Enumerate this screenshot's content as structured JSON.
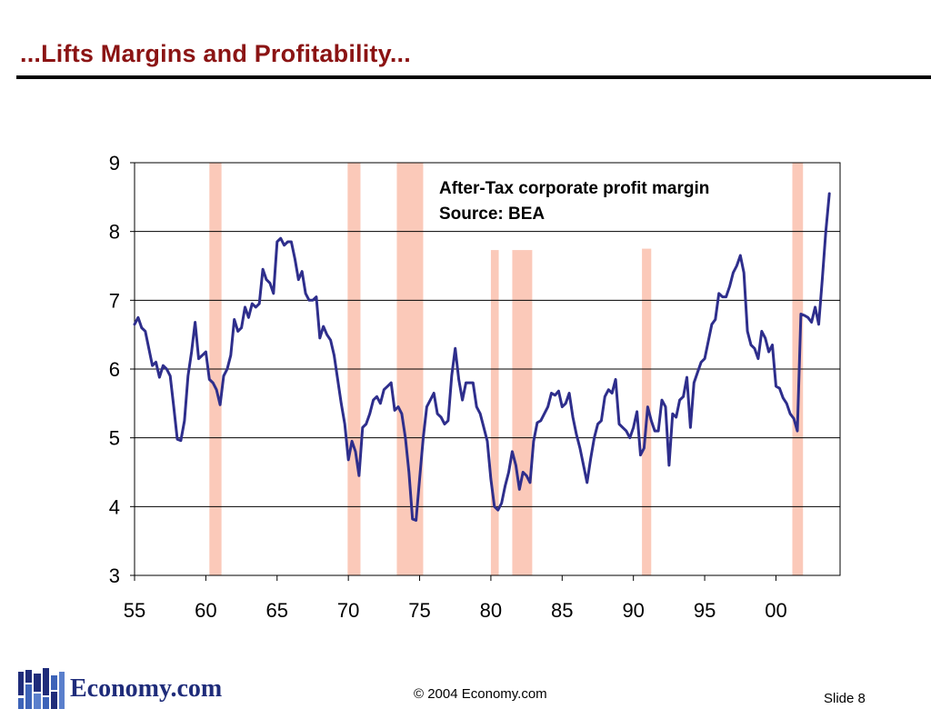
{
  "slide": {
    "title": "...Lifts Margins and Profitability...",
    "logo_text": "Economy.com",
    "copyright": "© 2004 Economy.com",
    "slide_label": "Slide 8"
  },
  "colors": {
    "title": "#8B1414",
    "line": "#2E2E8C",
    "recession": "#FBC9B9",
    "logo": "#1f2c7a"
  },
  "chart_data": {
    "type": "line",
    "annotation_lines": [
      "After-Tax corporate profit margin",
      "Source: BEA"
    ],
    "ylim": [
      3,
      9
    ],
    "yticks": [
      3,
      4,
      5,
      6,
      7,
      8,
      9
    ],
    "xlim": [
      1955,
      2004.5
    ],
    "xticks": [
      1955,
      1960,
      1965,
      1970,
      1975,
      1980,
      1985,
      1990,
      1995,
      2000
    ],
    "xtick_labels": [
      "55",
      "60",
      "65",
      "70",
      "75",
      "80",
      "85",
      "90",
      "95",
      "00"
    ],
    "grid": true,
    "recession_bands": [
      {
        "start": 1960.25,
        "end": 1961.1,
        "top": 9
      },
      {
        "start": 1969.95,
        "end": 1970.85,
        "top": 9
      },
      {
        "start": 1973.4,
        "end": 1975.25,
        "top": 9
      },
      {
        "start": 1980.0,
        "end": 1980.55,
        "top": 7.73
      },
      {
        "start": 1981.5,
        "end": 1982.9,
        "top": 7.73
      },
      {
        "start": 1990.6,
        "end": 1991.25,
        "top": 7.75
      },
      {
        "start": 2001.15,
        "end": 2001.9,
        "top": 9
      }
    ],
    "series": [
      {
        "x": [
          1955.0,
          1955.25,
          1955.5,
          1955.75,
          1956.0,
          1956.25,
          1956.5,
          1956.75,
          1957.0,
          1957.25,
          1957.5,
          1957.75,
          1958.0,
          1958.25,
          1958.5,
          1958.75,
          1959.0,
          1959.25,
          1959.5,
          1959.75,
          1960.0,
          1960.25,
          1960.5,
          1960.75,
          1961.0,
          1961.25,
          1961.5,
          1961.75,
          1962.0,
          1962.25,
          1962.5,
          1962.75,
          1963.0,
          1963.25,
          1963.5,
          1963.75,
          1964.0,
          1964.25,
          1964.5,
          1964.75,
          1965.0,
          1965.25,
          1965.5,
          1965.75,
          1966.0,
          1966.25,
          1966.5,
          1966.75,
          1967.0,
          1967.25,
          1967.5,
          1967.75,
          1968.0,
          1968.25,
          1968.5,
          1968.75,
          1969.0,
          1969.25,
          1969.5,
          1969.75,
          1970.0,
          1970.25,
          1970.5,
          1970.75,
          1971.0,
          1971.25,
          1971.5,
          1971.75,
          1972.0,
          1972.25,
          1972.5,
          1972.75,
          1973.0,
          1973.25,
          1973.5,
          1973.75,
          1974.0,
          1974.25,
          1974.5,
          1974.75,
          1975.0,
          1975.25,
          1975.5,
          1975.75,
          1976.0,
          1976.25,
          1976.5,
          1976.75,
          1977.0,
          1977.25,
          1977.5,
          1977.75,
          1978.0,
          1978.25,
          1978.5,
          1978.75,
          1979.0,
          1979.25,
          1979.5,
          1979.75,
          1980.0,
          1980.25,
          1980.5,
          1980.75,
          1981.0,
          1981.25,
          1981.5,
          1981.75,
          1982.0,
          1982.25,
          1982.5,
          1982.75,
          1983.0,
          1983.25,
          1983.5,
          1983.75,
          1984.0,
          1984.25,
          1984.5,
          1984.75,
          1985.0,
          1985.25,
          1985.5,
          1985.75,
          1986.0,
          1986.25,
          1986.5,
          1986.75,
          1987.0,
          1987.25,
          1987.5,
          1987.75,
          1988.0,
          1988.25,
          1988.5,
          1988.75,
          1989.0,
          1989.25,
          1989.5,
          1989.75,
          1990.0,
          1990.25,
          1990.5,
          1990.75,
          1991.0,
          1991.25,
          1991.5,
          1991.75,
          1992.0,
          1992.25,
          1992.5,
          1992.75,
          1993.0,
          1993.25,
          1993.5,
          1993.75,
          1994.0,
          1994.25,
          1994.5,
          1994.75,
          1995.0,
          1995.25,
          1995.5,
          1995.75,
          1996.0,
          1996.25,
          1996.5,
          1996.75,
          1997.0,
          1997.25,
          1997.5,
          1997.75,
          1998.0,
          1998.25,
          1998.5,
          1998.75,
          1999.0,
          1999.25,
          1999.5,
          1999.75,
          2000.0,
          2000.25,
          2000.5,
          2000.75,
          2001.0,
          2001.25,
          2001.5,
          2001.75,
          2002.0,
          2002.25,
          2002.5,
          2002.75,
          2003.0,
          2003.25,
          2003.5,
          2003.75
        ],
        "y": [
          6.65,
          6.75,
          6.6,
          6.55,
          6.3,
          6.05,
          6.1,
          5.88,
          6.05,
          6.0,
          5.9,
          5.45,
          4.98,
          4.96,
          5.25,
          5.9,
          6.25,
          6.68,
          6.15,
          6.2,
          6.25,
          5.85,
          5.8,
          5.7,
          5.48,
          5.9,
          6.0,
          6.2,
          6.72,
          6.55,
          6.6,
          6.9,
          6.75,
          6.95,
          6.9,
          6.95,
          7.45,
          7.3,
          7.25,
          7.1,
          7.85,
          7.9,
          7.8,
          7.85,
          7.85,
          7.6,
          7.3,
          7.42,
          7.1,
          7.0,
          7.0,
          7.05,
          6.45,
          6.62,
          6.5,
          6.42,
          6.2,
          5.85,
          5.5,
          5.2,
          4.68,
          4.95,
          4.8,
          4.45,
          5.15,
          5.2,
          5.35,
          5.55,
          5.6,
          5.5,
          5.7,
          5.75,
          5.8,
          5.4,
          5.45,
          5.35,
          5.0,
          4.5,
          3.82,
          3.8,
          4.4,
          5.0,
          5.45,
          5.55,
          5.65,
          5.35,
          5.3,
          5.2,
          5.25,
          5.9,
          6.3,
          5.85,
          5.55,
          5.8,
          5.8,
          5.8,
          5.45,
          5.35,
          5.15,
          4.95,
          4.4,
          4.0,
          3.95,
          4.05,
          4.3,
          4.5,
          4.8,
          4.6,
          4.25,
          4.5,
          4.45,
          4.35,
          4.95,
          5.22,
          5.25,
          5.35,
          5.45,
          5.65,
          5.62,
          5.68,
          5.45,
          5.5,
          5.65,
          5.3,
          5.05,
          4.85,
          4.6,
          4.35,
          4.7,
          5.0,
          5.2,
          5.25,
          5.6,
          5.7,
          5.65,
          5.85,
          5.2,
          5.15,
          5.1,
          5.0,
          5.15,
          5.38,
          4.75,
          4.85,
          5.45,
          5.25,
          5.1,
          5.1,
          5.55,
          5.45,
          4.6,
          5.35,
          5.3,
          5.55,
          5.6,
          5.88,
          5.15,
          5.8,
          5.95,
          6.1,
          6.15,
          6.4,
          6.65,
          6.72,
          7.1,
          7.05,
          7.05,
          7.2,
          7.4,
          7.5,
          7.65,
          7.4,
          6.55,
          6.35,
          6.3,
          6.15,
          6.55,
          6.45,
          6.25,
          6.35,
          5.75,
          5.72,
          5.58,
          5.5,
          5.35,
          5.28,
          5.1,
          6.8,
          6.78,
          6.75,
          6.68,
          6.9,
          6.65,
          7.3,
          8.0,
          8.55
        ]
      }
    ]
  }
}
